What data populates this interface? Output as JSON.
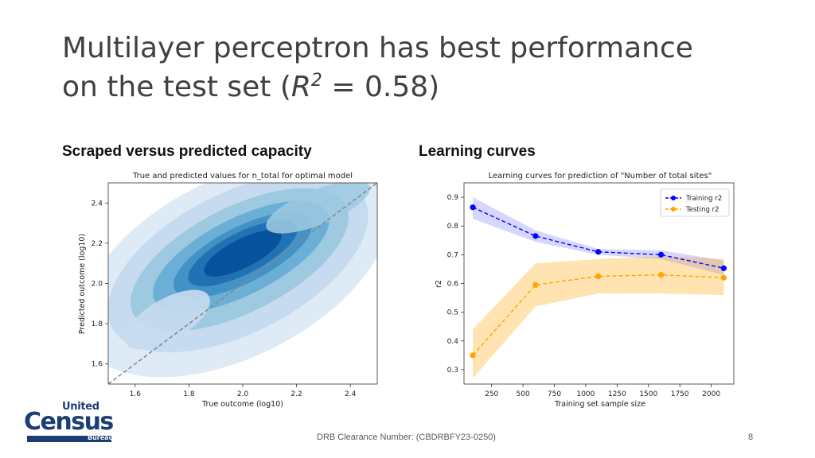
{
  "slide": {
    "title_line1": "Multilayer perceptron has best performance",
    "title_line2_pre": "on the test set (",
    "title_r": "R",
    "title_sup": "2",
    "title_line2_post": " = 0.58)",
    "left_heading": "Scraped versus predicted capacity",
    "right_heading": "Learning curves",
    "footer_center": "DRB Clearance Number: (CBDRBFY23-0250)",
    "page_number": "8"
  },
  "logo": {
    "united": "United",
    "census": "Census",
    "bureau": "Bureau",
    "brand_color": "#1b3f73"
  },
  "chart_data": [
    {
      "type": "heatmap",
      "subtype": "kde-density",
      "title": "True and predicted values for n_total for optimal model",
      "xlabel": "True outcome (log10)",
      "ylabel": "Predicted outcome (log10)",
      "xlim": [
        1.5,
        2.5
      ],
      "ylim": [
        1.5,
        2.5
      ],
      "xticks": [
        "1.6",
        "1.8",
        "2.0",
        "2.2",
        "2.4"
      ],
      "yticks": [
        "1.6",
        "1.8",
        "2.0",
        "2.2",
        "2.4"
      ],
      "colormap": [
        "#deebf7",
        "#c6dbef",
        "#9ecae1",
        "#6baed6",
        "#4292c6",
        "#2171b5",
        "#08519c"
      ],
      "density_center": [
        2.0,
        2.15
      ],
      "reference_line": {
        "from": [
          1.5,
          1.5
        ],
        "to": [
          2.5,
          2.5
        ],
        "style": "dashed",
        "color": "#888888"
      },
      "grid": false
    },
    {
      "type": "line",
      "title": "Learning curves for prediction of \"Number of total sites\"",
      "xlabel": "Training set sample size",
      "ylabel": "r2",
      "xlim": [
        30,
        2180
      ],
      "ylim": [
        0.25,
        0.95
      ],
      "xticks": [
        "250",
        "500",
        "750",
        "1000",
        "1250",
        "1500",
        "1750",
        "2000"
      ],
      "yticks": [
        "0.3",
        "0.4",
        "0.5",
        "0.6",
        "0.7",
        "0.8",
        "0.9"
      ],
      "legend_position": "top-right",
      "x": [
        100,
        600,
        1100,
        1600,
        2100
      ],
      "series": [
        {
          "name": "Training r2",
          "color": "#0000ff",
          "values": [
            0.865,
            0.765,
            0.71,
            0.7,
            0.653
          ],
          "band_low": [
            0.825,
            0.745,
            0.7,
            0.685,
            0.63
          ],
          "band_high": [
            0.9,
            0.785,
            0.72,
            0.715,
            0.68
          ]
        },
        {
          "name": "Testing r2",
          "color": "#ffa500",
          "values": [
            0.35,
            0.595,
            0.625,
            0.63,
            0.62
          ],
          "band_low": [
            0.27,
            0.52,
            0.565,
            0.565,
            0.56
          ],
          "band_high": [
            0.44,
            0.67,
            0.685,
            0.695,
            0.685
          ]
        }
      ],
      "grid": false
    }
  ]
}
